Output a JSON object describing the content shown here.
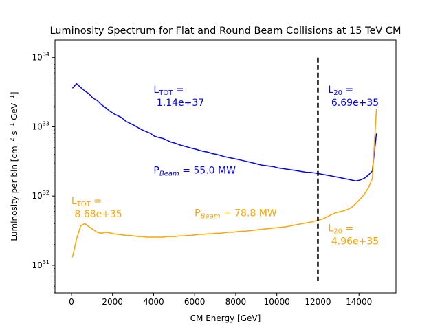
{
  "chart_data": {
    "type": "line",
    "title": "Luminosity Spectrum for Flat and Round Beam Collisions at 15 TeV CM",
    "xlabel": "CM Energy [GeV]",
    "ylabel_parts": {
      "main": "Luminosity per bin [cm",
      "exp1": "−2",
      "mid": " s",
      "exp2": "−1",
      "end": " GeV",
      "exp3": "−1",
      "close": "]"
    },
    "yscale": "log",
    "xlim": [
      -800,
      15800
    ],
    "ylim": [
      4e+30,
      1.8e+34
    ],
    "xticks": [
      {
        "v": 0,
        "label": "0"
      },
      {
        "v": 2000,
        "label": "2000"
      },
      {
        "v": 4000,
        "label": "4000"
      },
      {
        "v": 6000,
        "label": "6000"
      },
      {
        "v": 8000,
        "label": "8000"
      },
      {
        "v": 10000,
        "label": "10000"
      },
      {
        "v": 12000,
        "label": "12000"
      },
      {
        "v": 14000,
        "label": "14000"
      }
    ],
    "yticks": [
      {
        "v": 1e+31,
        "base": "10",
        "exp": "31"
      },
      {
        "v": 1e+32,
        "base": "10",
        "exp": "32"
      },
      {
        "v": 1e+33,
        "base": "10",
        "exp": "33"
      },
      {
        "v": 1e+34,
        "base": "10",
        "exp": "34"
      }
    ],
    "cutline": {
      "x": 12000,
      "y": [
        6e+30,
        1e+34
      ],
      "color": "#000000"
    },
    "series": [
      {
        "color": "#0000ff",
        "x": [
          50,
          250,
          450,
          650,
          850,
          1050,
          1250,
          1450,
          1650,
          1850,
          2050,
          2250,
          2450,
          2650,
          2850,
          3050,
          3250,
          3450,
          3650,
          3850,
          4050,
          4250,
          4450,
          4650,
          4850,
          5050,
          5250,
          5450,
          5650,
          5850,
          6050,
          6250,
          6450,
          6650,
          6850,
          7050,
          7250,
          7450,
          7650,
          7850,
          8050,
          8250,
          8450,
          8650,
          8850,
          9050,
          9250,
          9450,
          9650,
          9850,
          10050,
          10250,
          10450,
          10650,
          10850,
          11050,
          11250,
          11450,
          11650,
          11850,
          12050,
          12250,
          12450,
          12650,
          12850,
          13050,
          13250,
          13450,
          13650,
          13850,
          14050,
          14250,
          14450,
          14650,
          14850
        ],
        "y": [
          3.6e+33,
          4.2e+33,
          3.7e+33,
          3.3e+33,
          3e+33,
          2.6e+33,
          2.4e+33,
          2.1e+33,
          1.9e+33,
          1.7e+33,
          1.55e+33,
          1.45e+33,
          1.35e+33,
          1.2e+33,
          1.12e+33,
          1.05e+33,
          9.7e+32,
          9e+32,
          8.5e+32,
          8e+32,
          7.3e+32,
          7e+32,
          6.8e+32,
          6.4e+32,
          6e+32,
          5.8e+32,
          5.5e+32,
          5.3e+32,
          5.1e+32,
          4.9e+32,
          4.75e+32,
          4.55e+32,
          4.4e+32,
          4.3e+32,
          4.1e+32,
          4e+32,
          3.85e+32,
          3.7e+32,
          3.6e+32,
          3.5e+32,
          3.4e+32,
          3.3e+32,
          3.2e+32,
          3.1e+32,
          3e+32,
          2.9e+32,
          2.8e+32,
          2.75e+32,
          2.7e+32,
          2.65e+32,
          2.55e+32,
          2.5e+32,
          2.45e+32,
          2.4e+32,
          2.35e+32,
          2.3e+32,
          2.25e+32,
          2.2e+32,
          2.2e+32,
          2.15e+32,
          2.1e+32,
          2.05e+32,
          2e+32,
          1.95e+32,
          1.9e+32,
          1.85e+32,
          1.8e+32,
          1.75e+32,
          1.7e+32,
          1.65e+32,
          1.7e+32,
          1.8e+32,
          2e+32,
          2.3e+32,
          8e+32
        ]
      },
      {
        "color": "#ffa500",
        "x": [
          50,
          250,
          450,
          650,
          850,
          1050,
          1250,
          1450,
          1650,
          1850,
          2050,
          2250,
          2450,
          2650,
          2850,
          3050,
          3250,
          3450,
          3650,
          3850,
          4050,
          4250,
          4450,
          4650,
          4850,
          5050,
          5250,
          5450,
          5650,
          5850,
          6050,
          6250,
          6450,
          6650,
          6850,
          7050,
          7250,
          7450,
          7650,
          7850,
          8050,
          8250,
          8450,
          8650,
          8850,
          9050,
          9250,
          9450,
          9650,
          9850,
          10050,
          10250,
          10450,
          10650,
          10850,
          11050,
          11250,
          11450,
          11650,
          11850,
          12050,
          12250,
          12450,
          12650,
          12850,
          13050,
          13250,
          13450,
          13650,
          13850,
          14050,
          14250,
          14450,
          14650,
          14850
        ],
        "y": [
          1.3e+31,
          2.4e+31,
          3.7e+31,
          4e+31,
          3.6e+31,
          3.3e+31,
          3e+31,
          2.9e+31,
          3e+31,
          2.95e+31,
          2.85e+31,
          2.8e+31,
          2.75e+31,
          2.7e+31,
          2.7e+31,
          2.65e+31,
          2.6e+31,
          2.6e+31,
          2.55e+31,
          2.55e+31,
          2.55e+31,
          2.55e+31,
          2.55e+31,
          2.6e+31,
          2.6e+31,
          2.6e+31,
          2.65e+31,
          2.65e+31,
          2.7e+31,
          2.7e+31,
          2.75e+31,
          2.8e+31,
          2.8e+31,
          2.85e+31,
          2.85e+31,
          2.9e+31,
          2.9e+31,
          2.95e+31,
          3e+31,
          3e+31,
          3.05e+31,
          3.1e+31,
          3.1e+31,
          3.15e+31,
          3.2e+31,
          3.25e+31,
          3.3e+31,
          3.35e+31,
          3.4e+31,
          3.45e+31,
          3.5e+31,
          3.55e+31,
          3.6e+31,
          3.7e+31,
          3.8e+31,
          3.9e+31,
          4e+31,
          4.1e+31,
          4.2e+31,
          4.35e+31,
          4.5e+31,
          4.7e+31,
          5e+31,
          5.4e+31,
          5.7e+31,
          5.9e+31,
          6.1e+31,
          6.4e+31,
          6.9e+31,
          7.8e+31,
          9e+31,
          1.05e+32,
          1.3e+32,
          1.8e+32,
          1.8e+33
        ]
      }
    ],
    "annotations": [
      {
        "id": "ltot-blue",
        "color": "#0000ff",
        "x": 4000,
        "y": 3.1e+33,
        "line1_main": "L",
        "line1_sub": "TOT",
        "line1_end": " =",
        "line2": " 1.14e+37"
      },
      {
        "id": "l20-blue",
        "color": "#0000ff",
        "x": 12500,
        "y": 3.1e+33,
        "line1_main": "L",
        "line1_sub": "20",
        "line1_end": " =",
        "line2": " 6.69e+35"
      },
      {
        "id": "pbeam-blue",
        "color": "#0000ff",
        "x": 4000,
        "y": 2.1e+32,
        "main": "P",
        "sub": "Beam",
        "end": " = 55.0 MW"
      },
      {
        "id": "ltot-orange",
        "color": "#ffa500",
        "x": 0,
        "y": 7.6e+31,
        "line1_main": "L",
        "line1_sub": "TOT",
        "line1_end": " =",
        "line2": " 8.68e+35"
      },
      {
        "id": "pbeam-orange",
        "color": "#ffa500",
        "x": 6000,
        "y": 5.1e+31,
        "main": "P",
        "sub": "Beam",
        "end": " = 78.8 MW"
      },
      {
        "id": "l20-orange",
        "color": "#ffa500",
        "x": 12500,
        "y": 3.1e+31,
        "line1_main": "L",
        "line1_sub": "20",
        "line1_end": " =",
        "line2": " 4.96e+35"
      }
    ]
  }
}
